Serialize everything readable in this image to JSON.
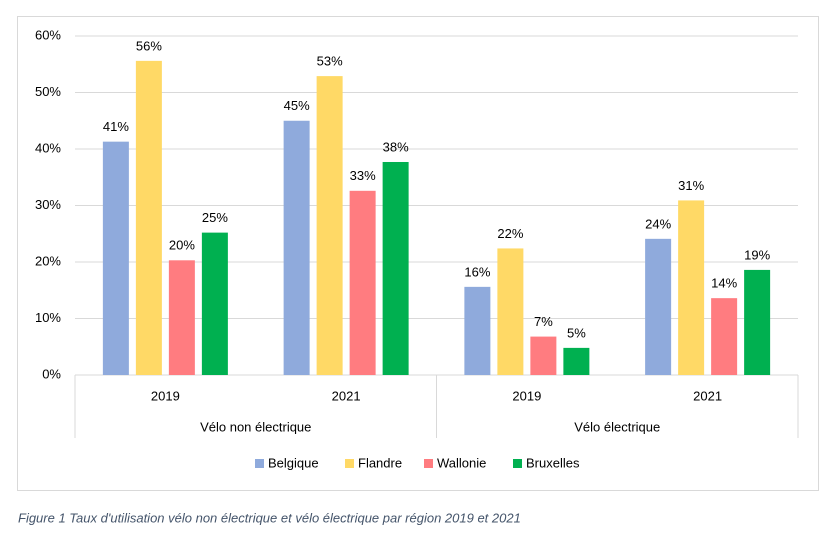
{
  "chart_data": {
    "type": "bar",
    "category_groups": [
      {
        "name": "Vélo non électrique",
        "categories": [
          "2019",
          "2021"
        ]
      },
      {
        "name": "Vélo électrique",
        "categories": [
          "2019",
          "2021"
        ]
      }
    ],
    "series": [
      {
        "name": "Belgique",
        "color": "#8faadc",
        "values": [
          41.3,
          45,
          15.6,
          24.1
        ],
        "value_labels": [
          "41%",
          "45%",
          "16%",
          "24%"
        ]
      },
      {
        "name": "Flandre",
        "color": "#ffd966",
        "values": [
          55.6,
          52.9,
          22.4,
          30.9
        ],
        "value_labels": [
          "56%",
          "53%",
          "22%",
          "31%"
        ]
      },
      {
        "name": "Wallonie",
        "color": "#ff7c80",
        "values": [
          20.3,
          32.6,
          6.8,
          13.6
        ],
        "value_labels": [
          "20%",
          "33%",
          "7%",
          "14%"
        ]
      },
      {
        "name": "Bruxelles",
        "color": "#00b050",
        "values": [
          25.2,
          37.7,
          4.8,
          18.6
        ],
        "value_labels": [
          "25%",
          "38%",
          "5%",
          "19%"
        ]
      }
    ],
    "ylim": [
      0,
      60
    ],
    "yticks": [
      {
        "value": 0,
        "label": "0%"
      },
      {
        "value": 10,
        "label": "10%"
      },
      {
        "value": 20,
        "label": "20%"
      },
      {
        "value": 30,
        "label": "30%"
      },
      {
        "value": 40,
        "label": "40%"
      },
      {
        "value": 50,
        "label": "50%"
      },
      {
        "value": 60,
        "label": "60%"
      }
    ],
    "grid": true,
    "legend": "bottom",
    "caption": "Figure 1 Taux d'utilisation vélo non électrique et vélo électrique par région 2019 et 2021"
  }
}
